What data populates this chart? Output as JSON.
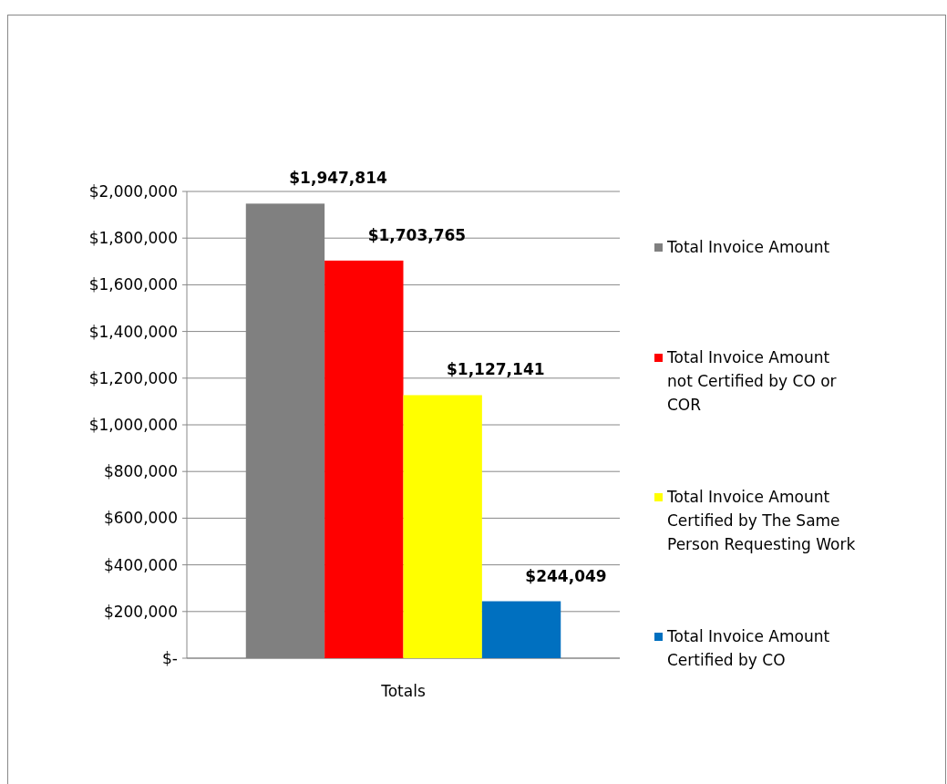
{
  "chart_data": {
    "type": "bar",
    "categories": [
      "Totals"
    ],
    "series": [
      {
        "name": "Total Invoice Amount",
        "color": "#808080",
        "values": [
          1947814
        ],
        "value_labels": [
          "$1,947,814"
        ]
      },
      {
        "name": "Total Invoice Amount not Certified by CO or COR",
        "color": "#ff0000",
        "values": [
          1703765
        ],
        "value_labels": [
          "$1,703,765"
        ]
      },
      {
        "name": "Total Invoice Amount Certified by The Same Person Requesting Work",
        "color": "#ffff00",
        "values": [
          1127141
        ],
        "value_labels": [
          "$1,127,141"
        ]
      },
      {
        "name": "Total Invoice Amount Certified by CO",
        "color": "#0070c0",
        "values": [
          244049
        ],
        "value_labels": [
          "$244,049"
        ]
      }
    ],
    "ylim": [
      0,
      2000000
    ],
    "yticks": [
      {
        "value": 0,
        "label": "$-"
      },
      {
        "value": 200000,
        "label": "$200,000"
      },
      {
        "value": 400000,
        "label": "$400,000"
      },
      {
        "value": 600000,
        "label": "$600,000"
      },
      {
        "value": 800000,
        "label": "$800,000"
      },
      {
        "value": 1000000,
        "label": "$1,000,000"
      },
      {
        "value": 1200000,
        "label": "$1,200,000"
      },
      {
        "value": 1400000,
        "label": "$1,400,000"
      },
      {
        "value": 1600000,
        "label": "$1,600,000"
      },
      {
        "value": 1800000,
        "label": "$1,800,000"
      },
      {
        "value": 2000000,
        "label": "$2,000,000"
      }
    ],
    "grid": "y",
    "legend": "right"
  }
}
